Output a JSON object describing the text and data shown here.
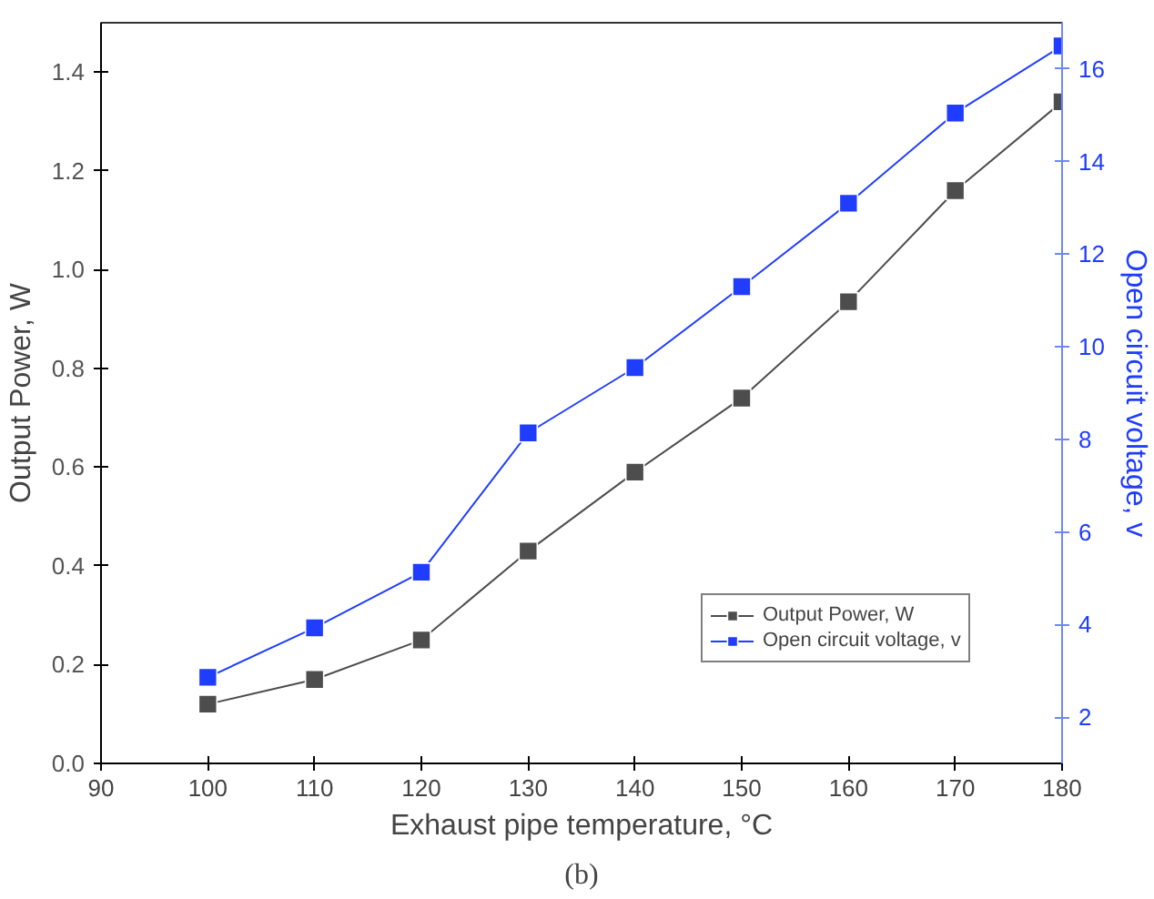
{
  "chart_data": {
    "type": "line",
    "xlabel": "Exhaust pipe temperature, °C",
    "ylabel": "Output Power, W",
    "y2label": "Open circuit voltage, v",
    "annotations": [
      "(b)"
    ],
    "x": [
      100,
      110,
      120,
      130,
      140,
      150,
      160,
      170,
      180
    ],
    "series": [
      {
        "name": "Output Power, W",
        "color": "#4d4d4d",
        "values": [
          0.12,
          0.17,
          0.25,
          0.43,
          0.59,
          0.74,
          0.935,
          1.16,
          1.34
        ]
      },
      {
        "name": "Open circuit voltage, v",
        "color": "#1f3cff",
        "axis": "y2",
        "values": [
          2.86,
          3.93,
          5.13,
          8.14,
          9.55,
          11.3,
          13.1,
          15.05,
          16.5
        ]
      }
    ],
    "xlim": [
      90,
      180
    ],
    "xticks": [
      90,
      100,
      110,
      120,
      130,
      140,
      150,
      160,
      170,
      180
    ],
    "ylim": [
      0,
      1.5
    ],
    "yticks": [
      {
        "value": 0,
        "label": "0.0"
      },
      {
        "value": 0.2,
        "label": "0.2"
      },
      {
        "value": 0.4,
        "label": "0.4"
      },
      {
        "value": 0.6,
        "label": "0.6"
      },
      {
        "value": 0.8,
        "label": "0.8"
      },
      {
        "value": 1.0,
        "label": "1.0"
      },
      {
        "value": 1.2,
        "label": "1.2"
      },
      {
        "value": 1.4,
        "label": "1.4"
      }
    ],
    "y2lim": [
      1,
      17
    ],
    "y2ticks": [
      2,
      4,
      6,
      8,
      10,
      12,
      14,
      16
    ],
    "grid": false,
    "legend": "right",
    "marker": "square",
    "line_style": "solid"
  }
}
